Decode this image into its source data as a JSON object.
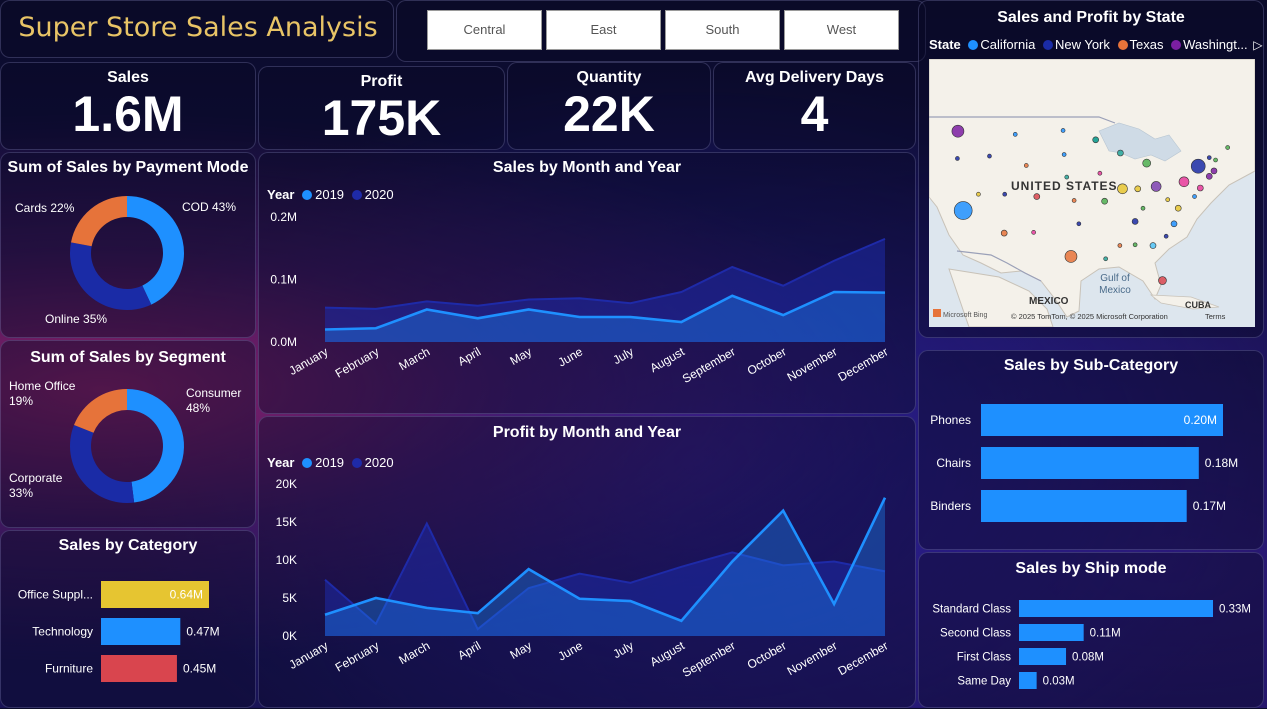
{
  "header": {
    "title": "Super Store Sales Analysis"
  },
  "region_slicer": {
    "items": [
      "Central",
      "East",
      "South",
      "West"
    ]
  },
  "kpis": [
    {
      "label": "Sales",
      "value": "1.6M"
    },
    {
      "label": "Profit",
      "value": "175K"
    },
    {
      "label": "Quantity",
      "value": "22K"
    },
    {
      "label": "Avg Delivery Days",
      "value": "4"
    }
  ],
  "colors": {
    "year_2019": "#1e90ff",
    "year_2020": "#1e2aa8",
    "bar_blue": "#1e90ff",
    "bar_yellow": "#e6c531",
    "bar_red": "#d9454e",
    "donut_blue": "#1e90ff",
    "donut_navy": "#1a2ba6",
    "donut_orange": "#e6733a",
    "title_gold": "#e8c466"
  },
  "map": {
    "title": "Sales and Profit by State",
    "legend_label": "State",
    "legend": [
      {
        "name": "California",
        "color": "#1e90ff"
      },
      {
        "name": "New York",
        "color": "#1a2ba6"
      },
      {
        "name": "Texas",
        "color": "#e6733a"
      },
      {
        "name": "Washingt...",
        "color": "#7b1fa2"
      }
    ],
    "labels": {
      "country": "UNITED STATES",
      "gulf": "Gulf of\nMexico",
      "mexico": "MEXICO",
      "cuba": "CUBA"
    },
    "attribution": "© 2025 TomTom, © 2025 Microsoft Corporation",
    "terms": "Terms",
    "bing": "Microsoft Bing"
  },
  "chart_data": [
    {
      "id": "payment-mode",
      "type": "pie",
      "title": "Sum of Sales by Payment Mode",
      "slices": [
        {
          "label": "COD",
          "percent": 43,
          "display": "COD 43%",
          "color": "#1e90ff"
        },
        {
          "label": "Online",
          "percent": 35,
          "display": "Online 35%",
          "color": "#1a2ba6"
        },
        {
          "label": "Cards",
          "percent": 22,
          "display": "Cards 22%",
          "color": "#e6733a"
        }
      ]
    },
    {
      "id": "segment",
      "type": "pie",
      "title": "Sum of Sales by Segment",
      "slices": [
        {
          "label": "Consumer",
          "percent": 48,
          "display": "Consumer\n48%",
          "color": "#1e90ff"
        },
        {
          "label": "Corporate",
          "percent": 33,
          "display": "Corporate\n33%",
          "color": "#1a2ba6"
        },
        {
          "label": "Home Office",
          "percent": 19,
          "display": "Home Office\n19%",
          "color": "#e6733a"
        }
      ]
    },
    {
      "id": "category",
      "type": "bar",
      "orientation": "horizontal",
      "title": "Sales by Category",
      "categories": [
        "Office Suppl...",
        "Technology",
        "Furniture"
      ],
      "values": [
        0.64,
        0.47,
        0.45
      ],
      "labels": [
        "0.64M",
        "0.47M",
        "0.45M"
      ],
      "colors": [
        "#e6c531",
        "#1e90ff",
        "#d9454e"
      ],
      "unit": "M"
    },
    {
      "id": "sales-month",
      "type": "area",
      "title": "Sales by Month and Year",
      "legend_title": "Year",
      "categories": [
        "January",
        "February",
        "March",
        "April",
        "May",
        "June",
        "July",
        "August",
        "September",
        "October",
        "November",
        "December"
      ],
      "series": [
        {
          "name": "2019",
          "color": "#1e90ff",
          "values": [
            0.02,
            0.022,
            0.052,
            0.038,
            0.052,
            0.04,
            0.04,
            0.032,
            0.074,
            0.043,
            0.08,
            0.079
          ]
        },
        {
          "name": "2020",
          "color": "#1e2aa8",
          "values": [
            0.055,
            0.053,
            0.065,
            0.058,
            0.068,
            0.07,
            0.062,
            0.08,
            0.12,
            0.09,
            0.13,
            0.165
          ]
        }
      ],
      "ylim": [
        0,
        0.2
      ],
      "yticks": [
        {
          "value": 0,
          "label": "0.0M"
        },
        {
          "value": 0.1,
          "label": "0.1M"
        },
        {
          "value": 0.2,
          "label": "0.2M"
        }
      ]
    },
    {
      "id": "profit-month",
      "type": "area",
      "title": "Profit by Month and Year",
      "legend_title": "Year",
      "categories": [
        "January",
        "February",
        "March",
        "April",
        "May",
        "June",
        "July",
        "August",
        "September",
        "October",
        "November",
        "December"
      ],
      "series": [
        {
          "name": "2019",
          "color": "#1e90ff",
          "values": [
            2800,
            5000,
            3700,
            3000,
            8800,
            4900,
            4600,
            2000,
            9800,
            16500,
            4200,
            18200
          ]
        },
        {
          "name": "2020",
          "color": "#1e2aa8",
          "values": [
            7400,
            1600,
            14800,
            900,
            6300,
            8200,
            7000,
            9100,
            11000,
            9300,
            9800,
            8500
          ]
        }
      ],
      "ylim": [
        0,
        20000
      ],
      "yticks": [
        {
          "value": 0,
          "label": "0K"
        },
        {
          "value": 5000,
          "label": "5K"
        },
        {
          "value": 10000,
          "label": "10K"
        },
        {
          "value": 15000,
          "label": "15K"
        },
        {
          "value": 20000,
          "label": "20K"
        }
      ]
    },
    {
      "id": "subcategory",
      "type": "bar",
      "orientation": "horizontal",
      "title": "Sales by Sub-Category",
      "categories": [
        "Phones",
        "Chairs",
        "Binders"
      ],
      "values": [
        0.2,
        0.18,
        0.17
      ],
      "labels": [
        "0.20M",
        "0.18M",
        "0.17M"
      ],
      "colors": [
        "#1e90ff",
        "#1e90ff",
        "#1e90ff"
      ],
      "unit": "M"
    },
    {
      "id": "shipmode",
      "type": "bar",
      "orientation": "horizontal",
      "title": "Sales by Ship mode",
      "categories": [
        "Standard Class",
        "Second Class",
        "First Class",
        "Same Day"
      ],
      "values": [
        0.33,
        0.11,
        0.08,
        0.03
      ],
      "labels": [
        "0.33M",
        "0.11M",
        "0.08M",
        "0.03M"
      ],
      "colors": [
        "#1e90ff",
        "#1e90ff",
        "#1e90ff",
        "#1e90ff"
      ],
      "unit": "M"
    },
    {
      "id": "state-map",
      "type": "scatter",
      "title": "Sales and Profit by State",
      "note": "bubble map of US states; bubble size = sales",
      "points": [
        {
          "lon": -119.5,
          "lat": 37.2,
          "size": 9,
          "color": "#1e90ff"
        },
        {
          "lon": -74.8,
          "lat": 42.9,
          "size": 7,
          "color": "#1a2ba6"
        },
        {
          "lon": -99.0,
          "lat": 31.3,
          "size": 6,
          "color": "#e6733a"
        },
        {
          "lon": -120.5,
          "lat": 47.4,
          "size": 6,
          "color": "#7b1fa2"
        },
        {
          "lon": -77.5,
          "lat": 40.9,
          "size": 5,
          "color": "#e6399b"
        },
        {
          "lon": -89.2,
          "lat": 40.0,
          "size": 5,
          "color": "#e6c531"
        },
        {
          "lon": -82.8,
          "lat": 40.3,
          "size": 5,
          "color": "#7b3fb0"
        },
        {
          "lon": -81.6,
          "lat": 28.2,
          "size": 4,
          "color": "#d9454e"
        },
        {
          "lon": -84.6,
          "lat": 43.3,
          "size": 4,
          "color": "#4caf50"
        },
        {
          "lon": -86.8,
          "lat": 35.8,
          "size": 3,
          "color": "#1a2ba6"
        },
        {
          "lon": -79.4,
          "lat": 35.5,
          "size": 3,
          "color": "#1e90ff"
        },
        {
          "lon": -78.6,
          "lat": 37.5,
          "size": 3,
          "color": "#e6c531"
        },
        {
          "lon": -83.4,
          "lat": 32.7,
          "size": 3,
          "color": "#4fc3f7"
        },
        {
          "lon": -89.6,
          "lat": 44.6,
          "size": 3,
          "color": "#26a69a"
        },
        {
          "lon": -94.3,
          "lat": 46.3,
          "size": 3,
          "color": "#009688"
        },
        {
          "lon": -105.5,
          "lat": 39.0,
          "size": 3,
          "color": "#d9454e"
        },
        {
          "lon": -111.7,
          "lat": 34.3,
          "size": 3,
          "color": "#e6733a"
        },
        {
          "lon": -71.8,
          "lat": 42.3,
          "size": 3,
          "color": "#7b1fa2"
        },
        {
          "lon": -74.4,
          "lat": 40.1,
          "size": 3,
          "color": "#e6399b"
        },
        {
          "lon": -72.7,
          "lat": 41.6,
          "size": 3,
          "color": "#7b1fa2"
        },
        {
          "lon": -86.3,
          "lat": 40.0,
          "size": 3,
          "color": "#e6c531"
        },
        {
          "lon": -92.6,
          "lat": 38.4,
          "size": 3,
          "color": "#4caf50"
        },
        {
          "lon": -92.4,
          "lat": 31.0,
          "size": 2,
          "color": "#26a69a"
        },
        {
          "lon": -89.7,
          "lat": 32.7,
          "size": 2,
          "color": "#e6733a"
        },
        {
          "lon": -86.8,
          "lat": 32.8,
          "size": 2,
          "color": "#4caf50"
        },
        {
          "lon": -97.5,
          "lat": 35.5,
          "size": 2,
          "color": "#1a2ba6"
        },
        {
          "lon": -98.4,
          "lat": 38.5,
          "size": 2,
          "color": "#e6733a"
        },
        {
          "lon": -99.8,
          "lat": 41.5,
          "size": 2,
          "color": "#26a69a"
        },
        {
          "lon": -93.5,
          "lat": 42.0,
          "size": 2,
          "color": "#e6399b"
        },
        {
          "lon": -111.6,
          "lat": 39.3,
          "size": 2,
          "color": "#1a2ba6"
        },
        {
          "lon": -116.6,
          "lat": 39.3,
          "size": 2,
          "color": "#e6c531"
        },
        {
          "lon": -120.6,
          "lat": 43.9,
          "size": 2,
          "color": "#1a2ba6"
        },
        {
          "lon": -114.5,
          "lat": 44.2,
          "size": 2,
          "color": "#1a2ba6"
        },
        {
          "lon": -109.6,
          "lat": 47.0,
          "size": 2,
          "color": "#1e90ff"
        },
        {
          "lon": -107.5,
          "lat": 43.0,
          "size": 2,
          "color": "#e6733a"
        },
        {
          "lon": -100.3,
          "lat": 44.4,
          "size": 2,
          "color": "#1e90ff"
        },
        {
          "lon": -100.5,
          "lat": 47.5,
          "size": 2,
          "color": "#1e90ff"
        },
        {
          "lon": -106.1,
          "lat": 34.4,
          "size": 2,
          "color": "#e6399b"
        },
        {
          "lon": -80.9,
          "lat": 33.9,
          "size": 2,
          "color": "#1a2ba6"
        },
        {
          "lon": -85.3,
          "lat": 37.5,
          "size": 2,
          "color": "#4caf50"
        },
        {
          "lon": -80.6,
          "lat": 38.6,
          "size": 2,
          "color": "#e6c531"
        },
        {
          "lon": -75.5,
          "lat": 39.0,
          "size": 2,
          "color": "#1e90ff"
        },
        {
          "lon": -71.5,
          "lat": 43.7,
          "size": 2,
          "color": "#4caf50"
        },
        {
          "lon": -69.2,
          "lat": 45.3,
          "size": 2,
          "color": "#4caf50"
        },
        {
          "lon": -72.7,
          "lat": 44.0,
          "size": 2,
          "color": "#1a2ba6"
        }
      ]
    }
  ]
}
